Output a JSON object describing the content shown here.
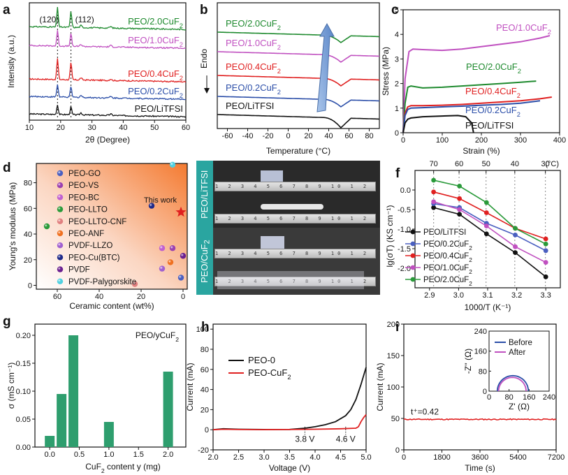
{
  "chart_data": [
    {
      "panel": "a",
      "type": "line",
      "xlabel": "2θ (Degree)",
      "ylabel": "Intensity (a.u.)",
      "xlim": [
        10,
        60
      ],
      "xticks": [
        10,
        20,
        30,
        40,
        50,
        60
      ],
      "peaks": [
        {
          "label": "(120)",
          "x": 19
        },
        {
          "label": "(112)",
          "x": 23.3
        }
      ],
      "series": [
        {
          "name": "PEO/LiTFSI",
          "color": "#111111"
        },
        {
          "name": "PEO/0.2CuF2",
          "color": "#2b4ea8"
        },
        {
          "name": "PEO/0.4CuF2",
          "color": "#e02020"
        },
        {
          "name": "PEO/1.0CuF2",
          "color": "#c050c0"
        },
        {
          "name": "PEO/2.0CuF2",
          "color": "#1e8a2e"
        }
      ]
    },
    {
      "panel": "b",
      "type": "line",
      "xlabel": "Temperature (°C)",
      "ylabel": "Endo",
      "xlim": [
        -70,
        90
      ],
      "xticks": [
        -60,
        -40,
        -20,
        0,
        20,
        40,
        60,
        80
      ],
      "series": [
        {
          "name": "PEO/2.0CuF2",
          "color": "#1e8a2e"
        },
        {
          "name": "PEO/1.0CuF2",
          "color": "#c050c0"
        },
        {
          "name": "PEO/0.4CuF2",
          "color": "#e02020"
        },
        {
          "name": "PEO/0.2CuF2",
          "color": "#2b4ea8"
        },
        {
          "name": "PEO/LiTFSI",
          "color": "#111111"
        }
      ]
    },
    {
      "panel": "c",
      "type": "line",
      "xlabel": "Strain (%)",
      "ylabel": "Stress (MPa)",
      "xlim": [
        0,
        400
      ],
      "ylim": [
        0,
        5
      ],
      "xticks": [
        0,
        100,
        200,
        300,
        400
      ],
      "yticks": [
        0,
        1,
        2,
        3,
        4,
        5
      ],
      "series": [
        {
          "name": "PEO/1.0CuF2",
          "color": "#c050c0",
          "x": [
            0,
            5,
            15,
            25,
            50,
            100,
            150,
            200,
            250,
            300,
            350,
            375
          ],
          "y": [
            0,
            2.2,
            3.3,
            3.4,
            3.38,
            3.35,
            3.4,
            3.5,
            3.6,
            3.7,
            3.85,
            3.95
          ]
        },
        {
          "name": "PEO/2.0CuF2",
          "color": "#1e8a2e",
          "x": [
            0,
            5,
            12,
            20,
            50,
            100,
            150,
            200,
            250,
            300,
            340
          ],
          "y": [
            0,
            1.2,
            1.85,
            1.9,
            1.82,
            1.85,
            1.9,
            1.95,
            2.0,
            2.05,
            2.1
          ]
        },
        {
          "name": "PEO/0.4CuF2",
          "color": "#e02020",
          "x": [
            0,
            5,
            12,
            20,
            50,
            100,
            150,
            200,
            250,
            300,
            350,
            380
          ],
          "y": [
            0,
            0.8,
            1.05,
            1.1,
            1.1,
            1.12,
            1.15,
            1.2,
            1.25,
            1.3,
            1.38,
            1.45
          ]
        },
        {
          "name": "PEO/0.2CuF2",
          "color": "#2b4ea8",
          "x": [
            0,
            5,
            12,
            20,
            50,
            100,
            150,
            200,
            250,
            300,
            350
          ],
          "y": [
            0,
            0.7,
            0.95,
            1.0,
            1.02,
            1.05,
            1.08,
            1.12,
            1.15,
            1.2,
            1.3
          ]
        },
        {
          "name": "PEO/LiTFSI",
          "color": "#111111",
          "x": [
            0,
            5,
            12,
            20,
            50,
            100,
            140,
            160,
            175,
            180
          ],
          "y": [
            0,
            0.4,
            0.55,
            0.6,
            0.65,
            0.68,
            0.7,
            0.65,
            0.4,
            0
          ]
        }
      ]
    },
    {
      "panel": "d",
      "type": "scatter",
      "xlabel": "Ceramic content (wt%)",
      "ylabel": "Young's modulus (MPa)",
      "xlim": [
        70,
        -2
      ],
      "ylim": [
        -3,
        95
      ],
      "xticks": [
        60,
        40,
        20,
        0
      ],
      "yticks": [
        0,
        20,
        40,
        60,
        80
      ],
      "annotation": "This work",
      "series": [
        {
          "name": "PEO-GO",
          "color": "#4a5fc0",
          "x": [
            1
          ],
          "y": [
            6
          ]
        },
        {
          "name": "PEO-VS",
          "color": "#9b40b0",
          "x": [
            5
          ],
          "y": [
            29
          ]
        },
        {
          "name": "PEO-BC",
          "color": "#c060d0",
          "x": [
            10
          ],
          "y": [
            29
          ]
        },
        {
          "name": "PEO-LLTO",
          "color": "#2a9a3a",
          "x": [
            65
          ],
          "y": [
            46
          ]
        },
        {
          "name": "PEO-LLTO-CNF",
          "color": "#e08080",
          "x": [
            23
          ],
          "y": [
            1
          ]
        },
        {
          "name": "PEO-ANF",
          "color": "#f07020",
          "x": [
            6
          ],
          "y": [
            18
          ]
        },
        {
          "name": "PVDF-LLZO",
          "color": "#a060d0",
          "x": [
            10
          ],
          "y": [
            13
          ]
        },
        {
          "name": "PEO-Cu(BTC)",
          "color": "#1e2a8a",
          "x": [
            15
          ],
          "y": [
            62
          ]
        },
        {
          "name": "PVDF",
          "color": "#6a2090",
          "x": [
            0
          ],
          "y": [
            23
          ]
        },
        {
          "name": "PVDF-Palygorskite",
          "color": "#50d0e0",
          "x": [
            5
          ],
          "y": [
            94
          ]
        },
        {
          "name": "This work",
          "color": "#e02020",
          "x": [
            1
          ],
          "y": [
            57
          ]
        }
      ]
    },
    {
      "panel": "e",
      "type": "image",
      "labels": [
        "PEO/LiTFSI",
        "PEO/CuF2"
      ],
      "ruler_text": "1 2 3 4 5 6 7 8 9 10 1 2 3 4 5 6 7 8 9"
    },
    {
      "panel": "f",
      "type": "line",
      "xlabel": "1000/T (K⁻¹)",
      "ylabel": "lg(σT) (KS cm⁻¹)",
      "xlim": [
        2.85,
        3.35
      ],
      "ylim": [
        -2.5,
        0.5
      ],
      "xticks": [
        2.9,
        3.0,
        3.1,
        3.2,
        3.3
      ],
      "yticks": [
        0.0,
        -0.5,
        -1.0,
        -1.5,
        -2.0
      ],
      "top_ticks": [
        70,
        60,
        50,
        40,
        30
      ],
      "top_unit": "(°C)",
      "x": [
        2.914,
        3.003,
        3.096,
        3.195,
        3.3
      ],
      "series": [
        {
          "name": "PEO/LiTFSI",
          "color": "#111111",
          "values": [
            -0.45,
            -0.62,
            -1.12,
            -1.6,
            -2.22
          ]
        },
        {
          "name": "PEO/0.2CuF2",
          "color": "#4a5fc0",
          "values": [
            -0.35,
            -0.45,
            -0.85,
            -1.15,
            -1.55
          ]
        },
        {
          "name": "PEO/0.4CuF2",
          "color": "#e02020",
          "values": [
            -0.05,
            -0.22,
            -0.58,
            -0.98,
            -1.25
          ]
        },
        {
          "name": "PEO/1.0CuF2",
          "color": "#c050c0",
          "values": [
            -0.3,
            -0.5,
            -0.92,
            -1.45,
            -1.85
          ]
        },
        {
          "name": "PEO/2.0CuF2",
          "color": "#2a9a3a",
          "values": [
            0.25,
            0.1,
            -0.32,
            -0.98,
            -1.38
          ]
        }
      ]
    },
    {
      "panel": "g",
      "type": "bar",
      "title": "PEO/yCuF2",
      "xlabel": "CuF2 content y (mg)",
      "ylabel": "σ (mS cm⁻¹)",
      "xlim": [
        -0.25,
        2.3
      ],
      "ylim": [
        0,
        0.22
      ],
      "xticks": [
        0.0,
        0.5,
        1.0,
        1.5,
        2.0
      ],
      "yticks": [
        0.0,
        0.05,
        0.1,
        0.15,
        0.2
      ],
      "x": [
        0,
        0.2,
        0.4,
        1.0,
        2.0
      ],
      "values": [
        0.02,
        0.095,
        0.2,
        0.045,
        0.135
      ],
      "color": "#2e9e6e"
    },
    {
      "panel": "h",
      "type": "line",
      "xlabel": "Voltage (V)",
      "ylabel": "Current (mA)",
      "xlim": [
        2.0,
        5.0
      ],
      "ylim": [
        -20,
        105
      ],
      "xticks": [
        2.0,
        2.5,
        3.0,
        3.5,
        4.0,
        4.5,
        5.0
      ],
      "yticks": [
        -20,
        0,
        20,
        40,
        60,
        80,
        100
      ],
      "annotations": [
        "3.8 V",
        "4.6 V"
      ],
      "series": [
        {
          "name": "PEO-0",
          "color": "#111111",
          "x": [
            2.0,
            2.2,
            2.5,
            3.0,
            3.5,
            3.8,
            4.0,
            4.2,
            4.4,
            4.6,
            4.7,
            4.8,
            4.9,
            5.0
          ],
          "y": [
            0,
            1,
            0.5,
            0.2,
            0.3,
            1.5,
            3,
            5,
            8,
            14,
            20,
            30,
            45,
            62
          ]
        },
        {
          "name": "PEO-CuF2",
          "color": "#e02020",
          "x": [
            2.0,
            2.2,
            2.5,
            3.0,
            3.5,
            4.0,
            4.5,
            4.8,
            4.85,
            4.9,
            4.95,
            5.0
          ],
          "y": [
            0,
            0.5,
            0.2,
            0.1,
            0.2,
            0.5,
            1.0,
            1.5,
            3,
            8,
            12,
            15
          ]
        }
      ]
    },
    {
      "panel": "i",
      "type": "line",
      "xlabel": "Time (s)",
      "ylabel": "Current (mA)",
      "xlim": [
        0,
        7200
      ],
      "ylim": [
        0,
        200
      ],
      "xticks": [
        0,
        1800,
        3600,
        5400,
        7200
      ],
      "yticks": [
        0,
        50,
        100,
        150,
        200
      ],
      "annotation": "t⁺=0.42",
      "series": [
        {
          "name": "current",
          "color": "#e02020",
          "x": [
            0,
            1000,
            2000,
            3000,
            4000,
            5000,
            6000,
            7200
          ],
          "y": [
            48,
            48.5,
            48,
            49,
            48.5,
            49,
            48.5,
            49
          ]
        }
      ],
      "inset": {
        "xlabel": "Z' (Ω)",
        "ylabel": "-Z'' (Ω)",
        "xlim": [
          0,
          240
        ],
        "ylim": [
          0,
          240
        ],
        "xticks": [
          0,
          80,
          160,
          240
        ],
        "yticks": [
          0,
          80,
          160,
          240
        ],
        "series": [
          {
            "name": "Before",
            "color": "#2b4ea8",
            "center": 95,
            "radius": 62
          },
          {
            "name": "After",
            "color": "#c050c0",
            "center": 93,
            "radius": 55
          }
        ]
      }
    }
  ]
}
